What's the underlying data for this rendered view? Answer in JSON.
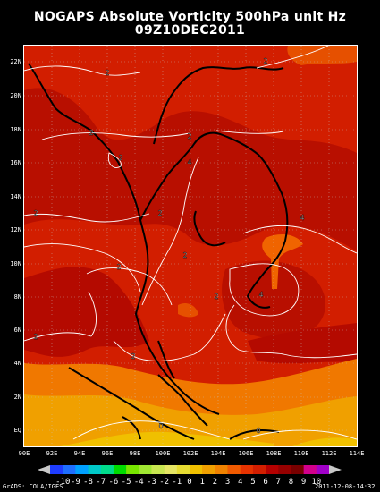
{
  "title_line1": "NOGAPS Absolute Vorticity 500hPa unit Hz",
  "title_line2": "09Z10DEC2011",
  "lat_labels": [
    "22N",
    "20N",
    "18N",
    "16N",
    "14N",
    "12N",
    "10N",
    "8N",
    "6N",
    "4N",
    "2N",
    "EQ"
  ],
  "lon_labels": [
    "90E",
    "92E",
    "94E",
    "96E",
    "98E",
    "100E",
    "102E",
    "104E",
    "106E",
    "108E",
    "110E",
    "112E",
    "114E"
  ],
  "contour_labels": [
    "2",
    "2",
    "2",
    "2",
    "2",
    "4",
    "2",
    "4",
    "2",
    "2",
    "2",
    "4",
    "2",
    "2",
    "2",
    "0",
    "0"
  ],
  "colorbar": {
    "labels": [
      "-10",
      "-9",
      "-8",
      "-7",
      "-6",
      "-5",
      "-4",
      "-3",
      "-2",
      "-1",
      "0",
      "1",
      "2",
      "3",
      "4",
      "5",
      "6",
      "7",
      "8",
      "9",
      "10"
    ],
    "colors": [
      "#1e3cff",
      "#1e6eff",
      "#00a0ff",
      "#00c8c8",
      "#00dc8c",
      "#00dc00",
      "#78e600",
      "#a0e632",
      "#c8e650",
      "#e6e664",
      "#e6dc32",
      "#f0c000",
      "#f0a000",
      "#f08200",
      "#f05a00",
      "#e63200",
      "#d21e00",
      "#b40000",
      "#960000",
      "#780000",
      "#d2008c",
      "#a000c8"
    ]
  },
  "credit_left": "GrADS: COLA/IGES",
  "credit_right": "2011-12-08-14:32"
}
